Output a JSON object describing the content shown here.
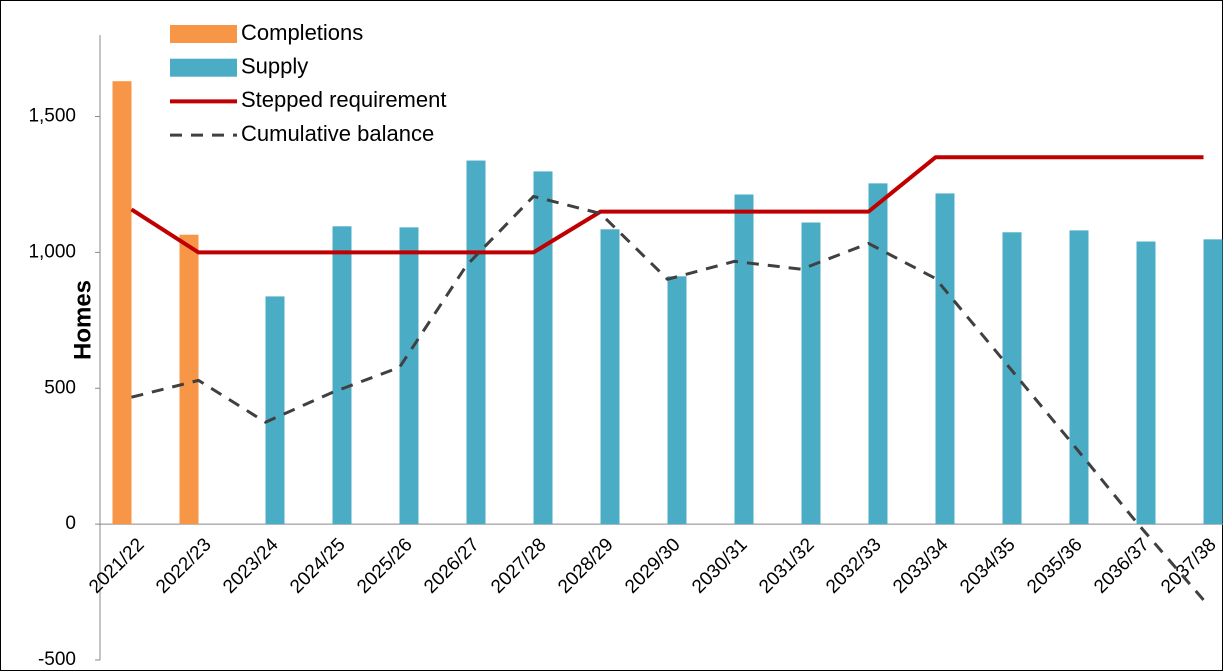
{
  "chart_data": {
    "type": "bar_line",
    "y_label": "Homes",
    "categories": [
      "2021/22",
      "2022/23",
      "2023/24",
      "2024/25",
      "2025/26",
      "2026/27",
      "2027/28",
      "2028/29",
      "2029/30",
      "2030/31",
      "2031/32",
      "2032/33",
      "2033/34",
      "2034/35",
      "2035/36",
      "2036/37",
      "2037/38"
    ],
    "series": [
      {
        "name": "Completions",
        "kind": "bar",
        "color": "#f79646",
        "values": [
          1630,
          1065,
          null,
          null,
          null,
          null,
          null,
          null,
          null,
          null,
          null,
          null,
          null,
          null,
          null,
          null,
          null
        ]
      },
      {
        "name": "Supply",
        "kind": "bar",
        "color": "#4bacc6",
        "values": [
          null,
          null,
          838,
          1096,
          1092,
          1338,
          1298,
          1085,
          912,
          1213,
          1110,
          1254,
          1217,
          1074,
          1081,
          1040,
          1048
        ]
      },
      {
        "name": "Stepped requirement",
        "kind": "line",
        "color": "#c00000",
        "values": [
          1158,
          1000,
          1000,
          1000,
          1000,
          1000,
          1000,
          1150,
          1150,
          1150,
          1150,
          1150,
          1350,
          1350,
          1350,
          1350,
          1350
        ]
      },
      {
        "name": "Cumulative balance",
        "kind": "dashed",
        "color": "#404040",
        "values": [
          467,
          529,
          375,
          485,
          577,
          952,
          1206,
          1143,
          901,
          967,
          938,
          1033,
          904,
          607,
          309,
          7,
          -279
        ]
      }
    ],
    "ylim": [
      -500,
      1800
    ],
    "yticks": [
      -500,
      0,
      500,
      {
        "value": 1000,
        "label": "1,000"
      },
      {
        "value": 1500,
        "label": "1,500"
      }
    ],
    "legend": "top-left"
  }
}
